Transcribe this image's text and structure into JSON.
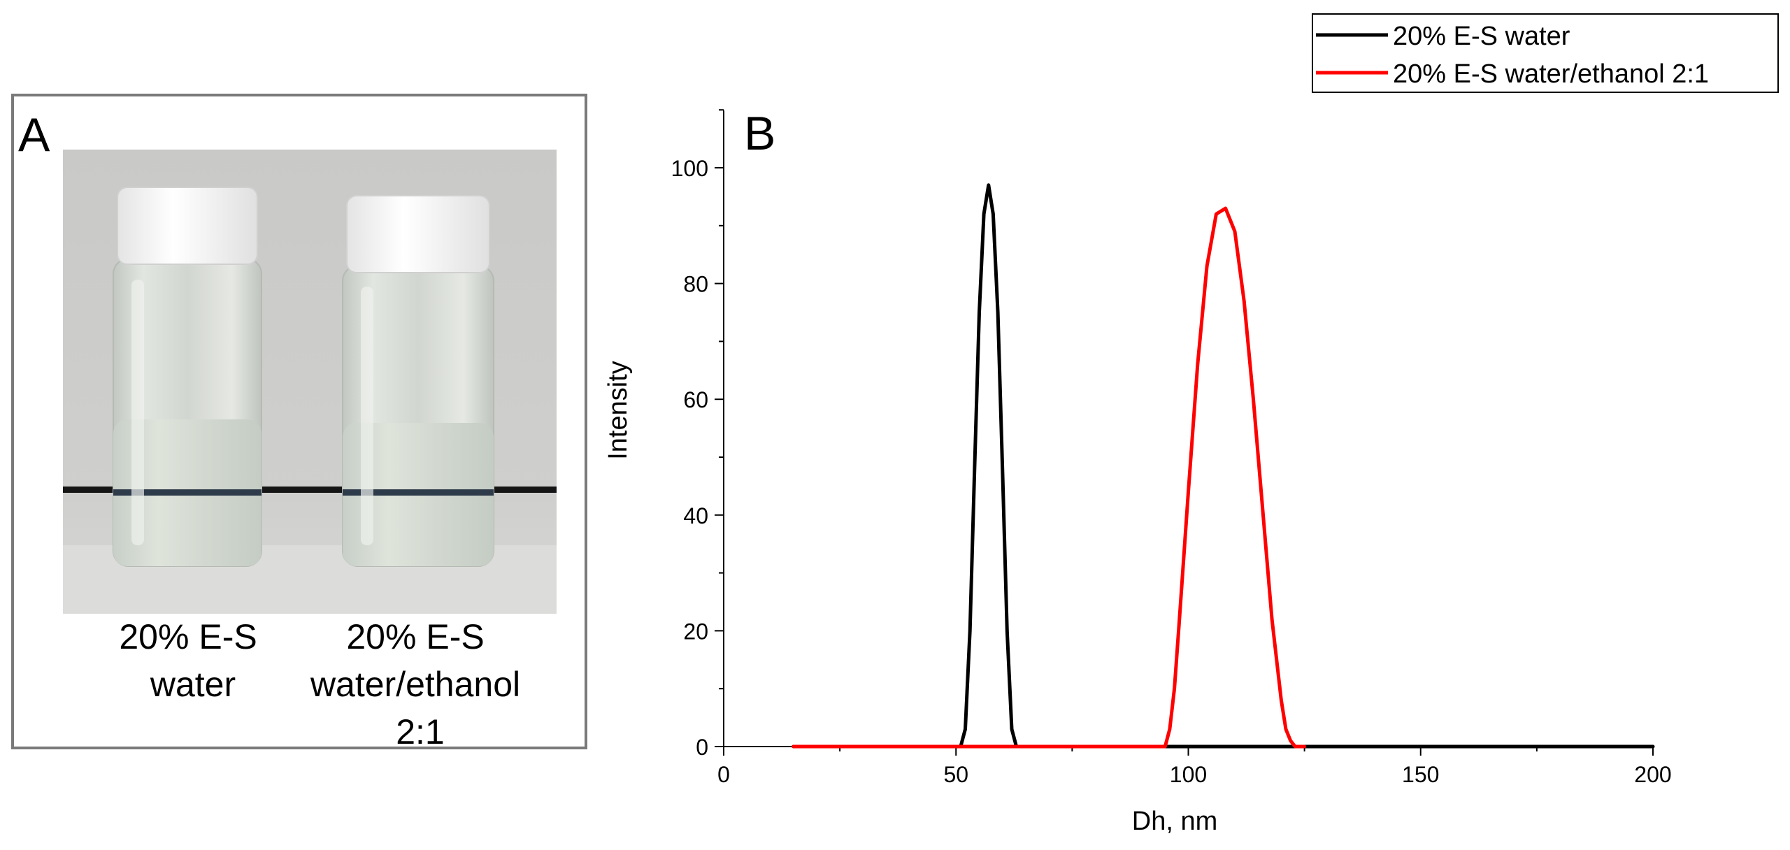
{
  "panel_a": {
    "label": "A",
    "vials": [
      {
        "caption_lines": [
          "20% E-S",
          "water"
        ]
      },
      {
        "caption_lines": [
          "20% E-S",
          "water/ethanol",
          "2:1"
        ]
      }
    ],
    "colors": {
      "frame": "#7a7a7a",
      "background": "#cbcbc9",
      "cap": "#f7f7f7",
      "liquid": "#d6dad2",
      "band": "#2e3b4a"
    }
  },
  "chart_data": {
    "type": "line",
    "panel_label": "B",
    "xlabel": "Dh, nm",
    "ylabel": "Intensity",
    "xlim": [
      0,
      200
    ],
    "ylim": [
      0,
      110
    ],
    "xticks": [
      0,
      50,
      100,
      150,
      200
    ],
    "yticks": [
      0,
      20,
      40,
      60,
      80,
      100
    ],
    "grid": false,
    "legend_position": "top-right",
    "series": [
      {
        "name": "20% E-S water",
        "color": "#000000",
        "x": [
          15,
          51,
          52,
          53,
          54,
          55,
          56,
          57,
          58,
          59,
          60,
          61,
          62,
          63,
          64,
          200
        ],
        "y": [
          0,
          0,
          3,
          20,
          48,
          75,
          92,
          97,
          92,
          75,
          48,
          20,
          3,
          0,
          0,
          0
        ]
      },
      {
        "name": "20% E-S water/ethanol 2:1",
        "color": "#ff0000",
        "x": [
          15,
          95,
          96,
          97,
          98,
          100,
          102,
          104,
          106,
          108,
          110,
          112,
          114,
          116,
          118,
          120,
          121,
          122,
          123,
          125
        ],
        "y": [
          0,
          0,
          3,
          10,
          21,
          44,
          66,
          83,
          92,
          93,
          89,
          77,
          60,
          41,
          22,
          8,
          3,
          1,
          0,
          0
        ]
      }
    ]
  }
}
